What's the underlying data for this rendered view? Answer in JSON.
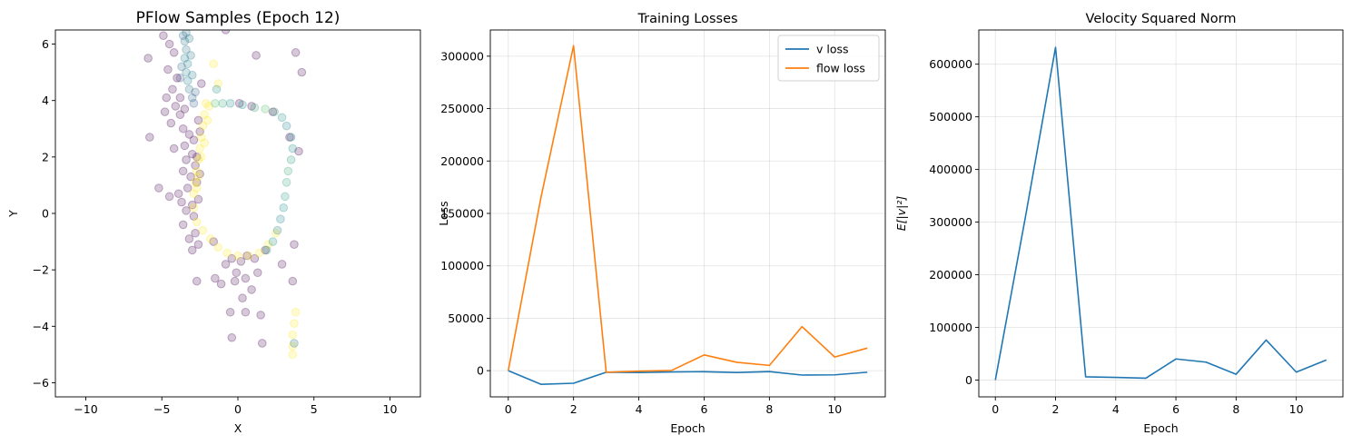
{
  "chart_data": [
    {
      "type": "scatter",
      "title": "PFlow Samples (Epoch 12)",
      "xlabel": "X",
      "ylabel": "Y",
      "xlim": [
        -12,
        12
      ],
      "ylim": [
        -6.5,
        6.5
      ],
      "xticks": [
        -10,
        -5,
        0,
        5,
        10
      ],
      "yticks": [
        -6,
        -4,
        -2,
        0,
        2,
        4,
        6
      ],
      "grid": false,
      "colormap": "viridis",
      "colors": {
        "viridis": [
          "#440154",
          "#3b528b",
          "#21918c",
          "#5ec962",
          "#fde725"
        ]
      },
      "points": [
        {
          "x": -3.4,
          "y": 6.4,
          "c": 0.4
        },
        {
          "x": -3.5,
          "y": 6.1,
          "c": 0.4
        },
        {
          "x": -3.4,
          "y": 5.8,
          "c": 0.4
        },
        {
          "x": -3.5,
          "y": 5.5,
          "c": 0.45
        },
        {
          "x": -3.3,
          "y": 5.3,
          "c": 0.45
        },
        {
          "x": -3.4,
          "y": 5.0,
          "c": 0.45
        },
        {
          "x": -3.3,
          "y": 4.7,
          "c": 0.45
        },
        {
          "x": -3.2,
          "y": 4.4,
          "c": 0.4
        },
        {
          "x": -3.0,
          "y": 4.1,
          "c": 0.35
        },
        {
          "x": -3.6,
          "y": 6.3,
          "c": 0.35
        },
        {
          "x": -3.2,
          "y": 6.2,
          "c": 0.4
        },
        {
          "x": -3.1,
          "y": 5.6,
          "c": 0.4
        },
        {
          "x": -3.7,
          "y": 5.2,
          "c": 0.35
        },
        {
          "x": -3.0,
          "y": 4.9,
          "c": 0.4
        },
        {
          "x": -2.8,
          "y": 4.3,
          "c": 0.3
        },
        {
          "x": -3.8,
          "y": 4.8,
          "c": 0.3
        },
        {
          "x": -2.9,
          "y": 3.9,
          "c": 0.3
        },
        {
          "x": -4.9,
          "y": 6.3,
          "c": 0.0
        },
        {
          "x": -4.5,
          "y": 6.0,
          "c": 0.0
        },
        {
          "x": -4.2,
          "y": 5.7,
          "c": 0.0
        },
        {
          "x": -5.9,
          "y": 5.5,
          "c": 0.0
        },
        {
          "x": -4.6,
          "y": 5.1,
          "c": 0.0
        },
        {
          "x": -4.0,
          "y": 4.8,
          "c": 0.0
        },
        {
          "x": -4.3,
          "y": 4.4,
          "c": 0.0
        },
        {
          "x": -4.7,
          "y": 4.1,
          "c": 0.0
        },
        {
          "x": -4.1,
          "y": 3.8,
          "c": 0.0
        },
        {
          "x": -3.8,
          "y": 3.5,
          "c": 0.0
        },
        {
          "x": -4.4,
          "y": 3.2,
          "c": 0.0
        },
        {
          "x": -3.6,
          "y": 3.0,
          "c": 0.0
        },
        {
          "x": -3.2,
          "y": 2.8,
          "c": 0.0
        },
        {
          "x": -2.9,
          "y": 2.6,
          "c": 0.0
        },
        {
          "x": -3.5,
          "y": 2.4,
          "c": 0.0
        },
        {
          "x": -4.2,
          "y": 2.3,
          "c": 0.0
        },
        {
          "x": -3.0,
          "y": 2.1,
          "c": 0.0
        },
        {
          "x": -3.4,
          "y": 1.9,
          "c": 0.0
        },
        {
          "x": -2.8,
          "y": 1.7,
          "c": 0.0
        },
        {
          "x": -3.6,
          "y": 1.5,
          "c": 0.0
        },
        {
          "x": -3.1,
          "y": 1.3,
          "c": 0.0
        },
        {
          "x": -2.7,
          "y": 1.1,
          "c": 0.0
        },
        {
          "x": -3.3,
          "y": 0.9,
          "c": 0.0
        },
        {
          "x": -3.9,
          "y": 0.7,
          "c": 0.0
        },
        {
          "x": -4.5,
          "y": 0.6,
          "c": 0.0
        },
        {
          "x": -5.2,
          "y": 0.9,
          "c": 0.0
        },
        {
          "x": -3.7,
          "y": 0.4,
          "c": 0.0
        },
        {
          "x": -3.0,
          "y": 0.3,
          "c": 0.0
        },
        {
          "x": -3.4,
          "y": 0.1,
          "c": 0.0
        },
        {
          "x": -2.9,
          "y": -0.1,
          "c": 0.0
        },
        {
          "x": -3.6,
          "y": -0.4,
          "c": 0.0
        },
        {
          "x": -2.8,
          "y": -0.7,
          "c": 0.0
        },
        {
          "x": -3.2,
          "y": -0.9,
          "c": 0.0
        },
        {
          "x": -2.6,
          "y": -1.1,
          "c": 0.0
        },
        {
          "x": -3.0,
          "y": -1.3,
          "c": 0.0
        },
        {
          "x": -5.8,
          "y": 2.7,
          "c": 0.0
        },
        {
          "x": -3.5,
          "y": 3.7,
          "c": 0.0
        },
        {
          "x": -2.6,
          "y": 3.3,
          "c": 0.0
        },
        {
          "x": -2.5,
          "y": 2.9,
          "c": 0.0
        },
        {
          "x": -2.7,
          "y": 2.0,
          "c": 0.0
        },
        {
          "x": -2.5,
          "y": 1.4,
          "c": 0.0
        },
        {
          "x": -2.6,
          "y": 0.5,
          "c": 0.0
        },
        {
          "x": -3.8,
          "y": 4.1,
          "c": 0.0
        },
        {
          "x": -4.8,
          "y": 3.6,
          "c": 0.0
        },
        {
          "x": -2.4,
          "y": 4.6,
          "c": 0.0
        },
        {
          "x": -2.7,
          "y": -2.4,
          "c": 0.0
        },
        {
          "x": -1.5,
          "y": -2.3,
          "c": 0.0
        },
        {
          "x": -0.8,
          "y": -1.8,
          "c": 0.0
        },
        {
          "x": -0.4,
          "y": -1.6,
          "c": 0.0
        },
        {
          "x": 0.2,
          "y": -1.7,
          "c": 0.0
        },
        {
          "x": 0.6,
          "y": -1.5,
          "c": 0.0
        },
        {
          "x": 1.1,
          "y": -1.6,
          "c": 0.0
        },
        {
          "x": -0.1,
          "y": -2.1,
          "c": 0.0
        },
        {
          "x": 0.5,
          "y": -2.3,
          "c": 0.0
        },
        {
          "x": 1.3,
          "y": -2.1,
          "c": 0.0
        },
        {
          "x": -1.1,
          "y": -2.5,
          "c": 0.0
        },
        {
          "x": -0.2,
          "y": -2.4,
          "c": 0.0
        },
        {
          "x": 0.9,
          "y": -2.7,
          "c": 0.0
        },
        {
          "x": 0.3,
          "y": -3.0,
          "c": 0.0
        },
        {
          "x": -0.5,
          "y": -3.5,
          "c": 0.0
        },
        {
          "x": 0.5,
          "y": -3.5,
          "c": 0.0
        },
        {
          "x": 1.5,
          "y": -3.6,
          "c": 0.0
        },
        {
          "x": -0.4,
          "y": -4.4,
          "c": 0.0
        },
        {
          "x": 1.6,
          "y": -4.6,
          "c": 0.0
        },
        {
          "x": 3.6,
          "y": -2.4,
          "c": 0.0
        },
        {
          "x": 2.9,
          "y": -1.8,
          "c": 0.0
        },
        {
          "x": 3.7,
          "y": -1.1,
          "c": 0.0
        },
        {
          "x": 1.8,
          "y": -1.3,
          "c": 0.0
        },
        {
          "x": -1.6,
          "y": -1.0,
          "c": 0.0
        },
        {
          "x": 1.2,
          "y": 5.6,
          "c": 0.0
        },
        {
          "x": 3.8,
          "y": 5.7,
          "c": 0.0
        },
        {
          "x": 4.2,
          "y": 5.0,
          "c": 0.0
        },
        {
          "x": 4.0,
          "y": 2.2,
          "c": 0.0
        },
        {
          "x": -0.8,
          "y": 6.5,
          "c": 0.0
        },
        {
          "x": 0.1,
          "y": 3.9,
          "c": 0.0
        },
        {
          "x": 0.9,
          "y": 3.8,
          "c": 0.0
        },
        {
          "x": 2.3,
          "y": 3.6,
          "c": 0.0
        },
        {
          "x": 3.4,
          "y": 2.7,
          "c": 0.0
        },
        {
          "x": -2.1,
          "y": 3.9,
          "c": 1.0
        },
        {
          "x": -2.2,
          "y": 3.5,
          "c": 1.0
        },
        {
          "x": -2.3,
          "y": 3.1,
          "c": 1.0
        },
        {
          "x": -2.4,
          "y": 2.7,
          "c": 1.0
        },
        {
          "x": -2.5,
          "y": 2.3,
          "c": 1.0
        },
        {
          "x": -2.6,
          "y": 1.9,
          "c": 1.0
        },
        {
          "x": -2.7,
          "y": 1.5,
          "c": 1.0
        },
        {
          "x": -2.8,
          "y": 1.1,
          "c": 1.0
        },
        {
          "x": -2.9,
          "y": 0.7,
          "c": 1.0
        },
        {
          "x": -1.9,
          "y": 3.8,
          "c": 1.0
        },
        {
          "x": -2.0,
          "y": 3.3,
          "c": 1.0
        },
        {
          "x": -2.2,
          "y": 2.5,
          "c": 1.0
        },
        {
          "x": -2.4,
          "y": 2.0,
          "c": 1.0
        },
        {
          "x": -2.6,
          "y": 1.3,
          "c": 1.0
        },
        {
          "x": -2.7,
          "y": 0.9,
          "c": 1.0
        },
        {
          "x": -2.9,
          "y": 0.2,
          "c": 1.0
        },
        {
          "x": -2.7,
          "y": -0.3,
          "c": 1.0
        },
        {
          "x": -2.3,
          "y": -0.6,
          "c": 1.0
        },
        {
          "x": -1.8,
          "y": -0.9,
          "c": 1.0
        },
        {
          "x": -1.3,
          "y": -1.2,
          "c": 1.0
        },
        {
          "x": -0.7,
          "y": -1.4,
          "c": 1.0
        },
        {
          "x": 0.0,
          "y": -1.5,
          "c": 1.0
        },
        {
          "x": 0.7,
          "y": -1.5,
          "c": 1.0
        },
        {
          "x": 1.4,
          "y": -1.4,
          "c": 1.0
        },
        {
          "x": 2.0,
          "y": -1.1,
          "c": 1.0
        },
        {
          "x": 2.5,
          "y": -0.7,
          "c": 1.0
        },
        {
          "x": -1.6,
          "y": 5.3,
          "c": 1.0
        },
        {
          "x": -1.3,
          "y": 4.6,
          "c": 1.0
        },
        {
          "x": 3.8,
          "y": -3.5,
          "c": 1.0
        },
        {
          "x": 3.7,
          "y": -3.9,
          "c": 1.0
        },
        {
          "x": 3.6,
          "y": -4.3,
          "c": 1.0
        },
        {
          "x": 3.6,
          "y": -4.7,
          "c": 1.0
        },
        {
          "x": 3.6,
          "y": -5.0,
          "c": 1.0
        },
        {
          "x": -1.5,
          "y": 3.9,
          "c": 0.7
        },
        {
          "x": -1.0,
          "y": 3.9,
          "c": 0.6
        },
        {
          "x": -0.5,
          "y": 3.9,
          "c": 0.5
        },
        {
          "x": 0.3,
          "y": 3.85,
          "c": 0.5
        },
        {
          "x": 1.1,
          "y": 3.75,
          "c": 0.6
        },
        {
          "x": 1.8,
          "y": 3.7,
          "c": 0.7
        },
        {
          "x": 2.4,
          "y": 3.6,
          "c": 0.6
        },
        {
          "x": 2.9,
          "y": 3.4,
          "c": 0.5
        },
        {
          "x": 3.2,
          "y": 3.1,
          "c": 0.45
        },
        {
          "x": 3.5,
          "y": 2.7,
          "c": 0.45
        },
        {
          "x": 3.6,
          "y": 2.3,
          "c": 0.5
        },
        {
          "x": 3.5,
          "y": 1.9,
          "c": 0.55
        },
        {
          "x": 3.3,
          "y": 1.5,
          "c": 0.6
        },
        {
          "x": 3.2,
          "y": 1.1,
          "c": 0.6
        },
        {
          "x": 3.1,
          "y": 0.6,
          "c": 0.55
        },
        {
          "x": 3.0,
          "y": 0.2,
          "c": 0.5
        },
        {
          "x": 2.8,
          "y": -0.2,
          "c": 0.45
        },
        {
          "x": 2.6,
          "y": -0.6,
          "c": 0.45
        },
        {
          "x": 2.3,
          "y": -1.0,
          "c": 0.5
        },
        {
          "x": 1.9,
          "y": -1.3,
          "c": 0.55
        },
        {
          "x": 3.7,
          "y": -4.6,
          "c": 0.4
        },
        {
          "x": -1.4,
          "y": 4.4,
          "c": 0.5
        }
      ]
    },
    {
      "type": "line",
      "title": "Training Losses",
      "xlabel": "Epoch",
      "ylabel": "Loss",
      "xlim": [
        -0.55,
        11.55
      ],
      "ylim": [
        -25000,
        325000
      ],
      "xticks": [
        0,
        2,
        4,
        6,
        8,
        10
      ],
      "yticks": [
        0,
        50000,
        100000,
        150000,
        200000,
        250000,
        300000
      ],
      "grid": true,
      "legend": "top-right",
      "x": [
        0,
        1,
        2,
        3,
        4,
        5,
        6,
        7,
        8,
        9,
        10,
        11
      ],
      "series": [
        {
          "name": "v loss",
          "color": "#1f77b4",
          "values": [
            0,
            -13000,
            -12000,
            -1500,
            -1800,
            -1200,
            -1000,
            -1800,
            -900,
            -4200,
            -4000,
            -1500
          ]
        },
        {
          "name": "flow loss",
          "color": "#ff7f0e",
          "values": [
            0,
            165000,
            310000,
            -1500,
            -500,
            200,
            15000,
            8000,
            5000,
            42000,
            13000,
            21500
          ]
        }
      ]
    },
    {
      "type": "line",
      "title": "Velocity Squared Norm",
      "xlabel": "Epoch",
      "ylabel": "E[|v|²]",
      "xlim": [
        -0.55,
        11.55
      ],
      "ylim": [
        -32000,
        665000
      ],
      "xticks": [
        0,
        2,
        4,
        6,
        8,
        10
      ],
      "yticks": [
        0,
        100000,
        200000,
        300000,
        400000,
        500000,
        600000
      ],
      "grid": true,
      "x": [
        0,
        1,
        2,
        3,
        4,
        5,
        6,
        7,
        8,
        9,
        10,
        11
      ],
      "series": [
        {
          "color": "#1f77b4",
          "values": [
            0,
            310000,
            632000,
            6000,
            5000,
            3500,
            40000,
            34000,
            11000,
            76000,
            15000,
            38000
          ]
        }
      ]
    }
  ]
}
